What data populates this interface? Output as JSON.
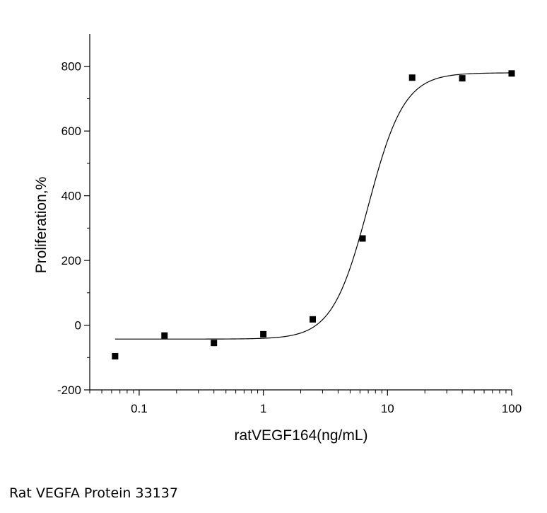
{
  "caption": "Rat VEGFA Protein 33137",
  "chart_data": {
    "type": "scatter",
    "xscale": "log",
    "xlabel": "ratVEGF164(ng/mL)",
    "ylabel": "Proliferation,%",
    "xlim": [
      0.04,
      100
    ],
    "ylim": [
      -200,
      900
    ],
    "x_ticks": [
      0.1,
      1,
      10,
      100
    ],
    "x_tick_labels": [
      "0.1",
      "1",
      "10",
      "100"
    ],
    "y_ticks": [
      -200,
      0,
      200,
      400,
      600,
      800
    ],
    "y_tick_labels": [
      "-200",
      "0",
      "200",
      "400",
      "600",
      "800"
    ],
    "grid": false,
    "series": [
      {
        "marker": "square",
        "x": [
          0.064,
          0.16,
          0.4,
          1.0,
          2.5,
          6.3,
          15.8,
          40,
          100
        ],
        "y": [
          -96,
          -32,
          -55,
          -28,
          18,
          268,
          765,
          763,
          778
        ]
      }
    ],
    "fit_curve": {
      "model": "4PL",
      "bottom": -43,
      "top": 780,
      "ec50": 7.0,
      "hill": 3.0
    }
  }
}
